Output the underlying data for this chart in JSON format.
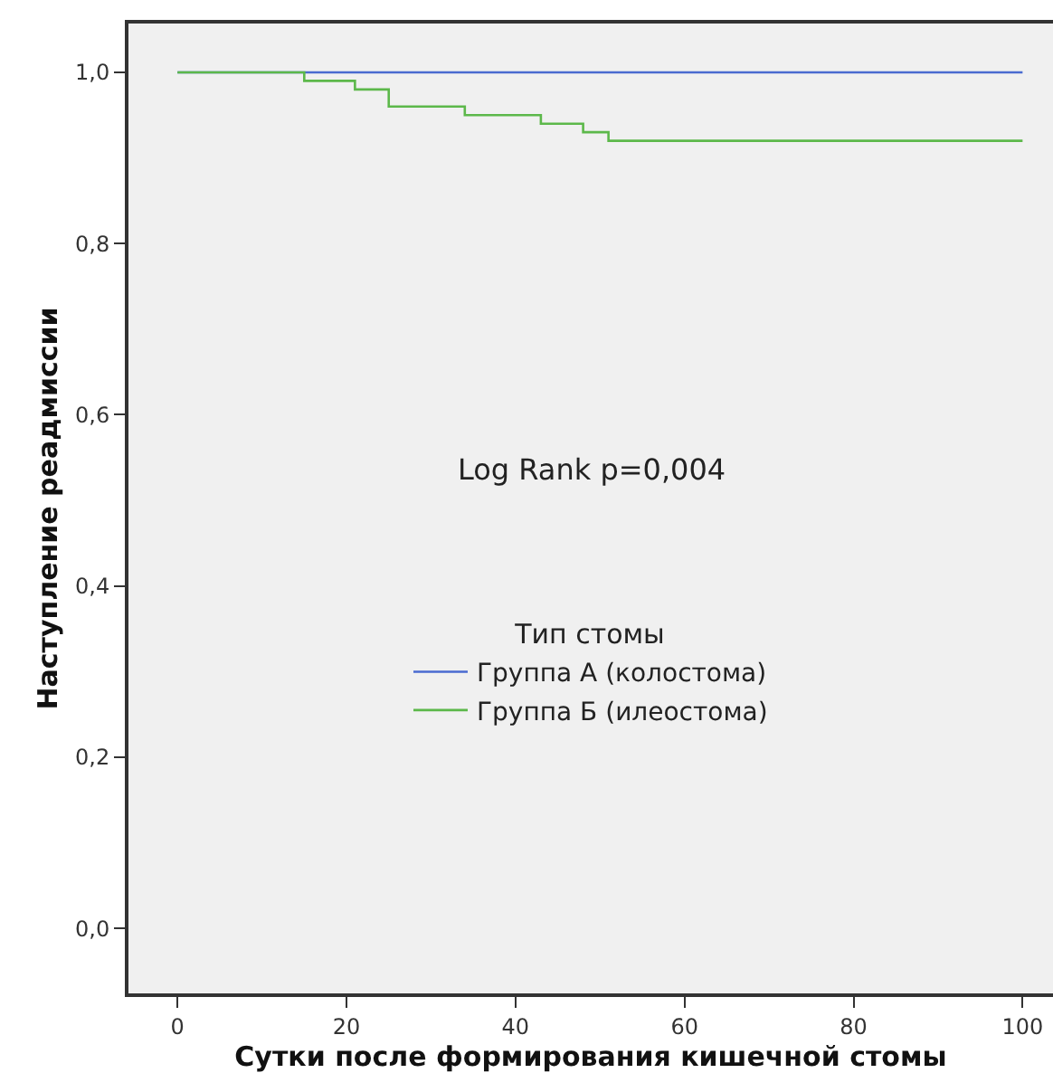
{
  "chart_data": {
    "type": "step",
    "xlabel": "Сутки после формирования кишечной стомы",
    "ylabel": "Наступление реадмиссии",
    "legend_title": "Тип стомы",
    "series": [
      {
        "name": "Группа А (колостома)",
        "color": "#4a6bd0",
        "x": [
          0,
          100
        ],
        "values": [
          1,
          1
        ]
      },
      {
        "name": "Группа Б (илеостома)",
        "color": "#5cb84a",
        "x": [
          0,
          15,
          21,
          25,
          34,
          43,
          48,
          51,
          100
        ],
        "values": [
          1,
          0.99,
          0.98,
          0.96,
          0.95,
          0.94,
          0.93,
          0.92,
          0.92
        ]
      }
    ],
    "xlim": [
      -5.8,
      103.6
    ],
    "ylim": [
      -0.076,
      1.057
    ],
    "xticks": [
      0,
      20,
      40,
      60,
      80,
      100
    ],
    "yticks": [
      {
        "value": 0,
        "label": "0,0"
      },
      {
        "value": 0.2,
        "label": "0,2"
      },
      {
        "value": 0.4,
        "label": "0,4"
      },
      {
        "value": 0.6,
        "label": "0,6"
      },
      {
        "value": 0.8,
        "label": "0,8"
      },
      {
        "value": 1,
        "label": "1,0"
      }
    ],
    "annotations": [
      "Log Rank p=0,004"
    ],
    "legend": "center",
    "grid": false,
    "line_style": "solid",
    "marker": "none"
  }
}
